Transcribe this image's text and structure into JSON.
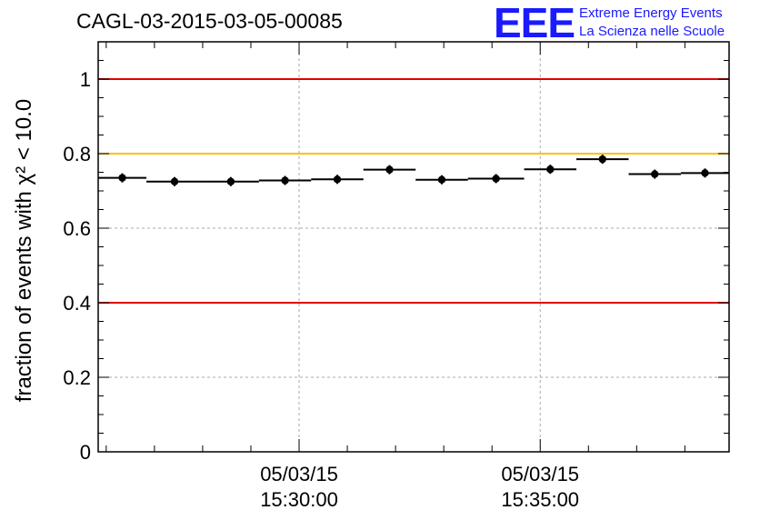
{
  "header": {
    "title": "CAGL-03-2015-03-05-00085"
  },
  "logo": {
    "mark": "EEE",
    "line1": "Extreme Energy Events",
    "line2": "La Scienza nelle Scuole",
    "color": "#1a1aff"
  },
  "chart_data": {
    "type": "scatter",
    "ylabel": "fraction of events with χ² < 10.0",
    "ylim": [
      0,
      1.1
    ],
    "yticks": [
      0,
      0.2,
      0.4,
      0.6,
      0.8,
      1
    ],
    "ytick_labels": [
      "0",
      "0.2",
      "0.4",
      "0.6",
      "0.8",
      "1"
    ],
    "xlim": [
      "2015-03-05 15:25:50",
      "2015-03-05 15:38:55"
    ],
    "xticks": [
      "2015-03-05 15:30:00",
      "2015-03-05 15:35:00"
    ],
    "xtick_labels": [
      [
        "05/03/15",
        "15:30:00"
      ],
      [
        "05/03/15",
        "15:35:00"
      ]
    ],
    "grid": true,
    "reference_lines": [
      {
        "y": 1.0,
        "color": "#e00000"
      },
      {
        "y": 0.8,
        "color": "#ffc000"
      },
      {
        "y": 0.4,
        "color": "#e00000"
      }
    ],
    "points": [
      {
        "x_start": "2015-03-05 15:25:50",
        "x_end": "2015-03-05 15:26:50",
        "y": 0.735
      },
      {
        "x_start": "2015-03-05 15:26:50",
        "x_end": "2015-03-05 15:28:00",
        "y": 0.725
      },
      {
        "x_start": "2015-03-05 15:28:00",
        "x_end": "2015-03-05 15:29:10",
        "y": 0.725
      },
      {
        "x_start": "2015-03-05 15:29:10",
        "x_end": "2015-03-05 15:30:15",
        "y": 0.728
      },
      {
        "x_start": "2015-03-05 15:30:15",
        "x_end": "2015-03-05 15:31:20",
        "y": 0.731
      },
      {
        "x_start": "2015-03-05 15:31:20",
        "x_end": "2015-03-05 15:32:25",
        "y": 0.757
      },
      {
        "x_start": "2015-03-05 15:32:25",
        "x_end": "2015-03-05 15:33:30",
        "y": 0.73
      },
      {
        "x_start": "2015-03-05 15:33:30",
        "x_end": "2015-03-05 15:34:40",
        "y": 0.733
      },
      {
        "x_start": "2015-03-05 15:34:40",
        "x_end": "2015-03-05 15:35:45",
        "y": 0.758
      },
      {
        "x_start": "2015-03-05 15:35:45",
        "x_end": "2015-03-05 15:36:50",
        "y": 0.785
      },
      {
        "x_start": "2015-03-05 15:36:50",
        "x_end": "2015-03-05 15:37:55",
        "y": 0.745
      },
      {
        "x_start": "2015-03-05 15:37:55",
        "x_end": "2015-03-05 15:38:55",
        "y": 0.748
      }
    ]
  }
}
